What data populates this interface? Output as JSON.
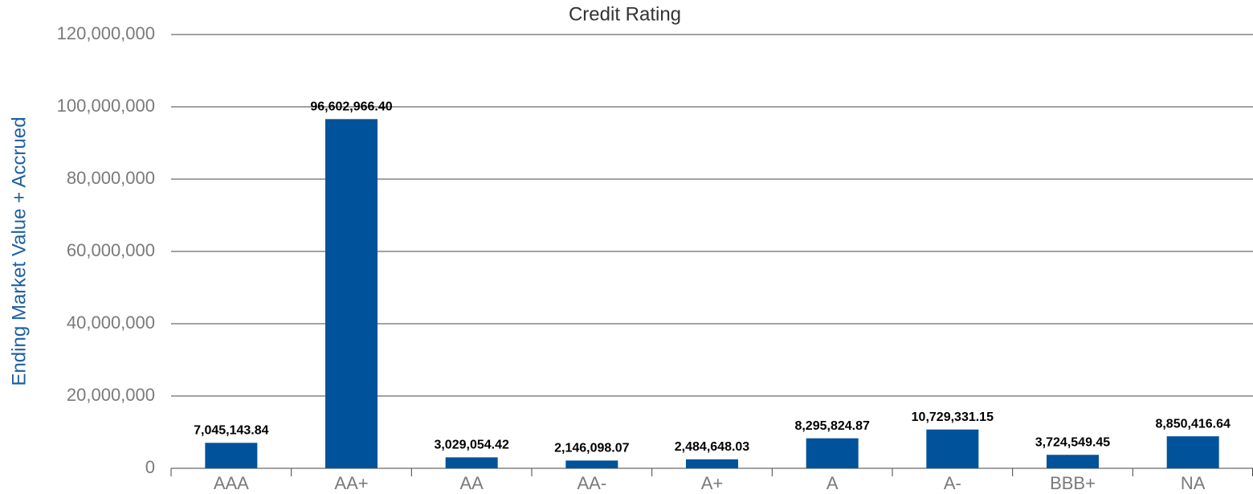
{
  "chart_data": {
    "type": "bar",
    "title": "Credit Rating",
    "y_label": "Ending Market Value + Accrued",
    "categories": [
      "AAA",
      "AA+",
      "AA",
      "AA-",
      "A+",
      "A",
      "A-",
      "BBB+",
      "NA"
    ],
    "values": [
      7045143.84,
      96602966.4,
      3029054.42,
      2146098.07,
      2484648.03,
      8295824.87,
      10729331.15,
      3724549.45,
      8850416.64
    ],
    "value_labels": [
      "7,045,143.84",
      "96,602,966.40",
      "3,029,054.42",
      "2,146,098.07",
      "2,484,648.03",
      "8,295,824.87",
      "10,729,331.15",
      "3,724,549.45",
      "8,850,416.64"
    ],
    "color": "#00529b",
    "ylim": [
      0,
      120000000
    ],
    "yticks": [
      0,
      {
        "value": 20000000,
        "label": "20,000,000"
      },
      {
        "value": 40000000,
        "label": "40,000,000"
      },
      {
        "value": 60000000,
        "label": "60,000,000"
      },
      {
        "value": 80000000,
        "label": "80,000,000"
      },
      {
        "value": 100000000,
        "label": "100,000,000"
      },
      {
        "value": 120000000,
        "label": "120,000,000"
      }
    ],
    "grid": true
  }
}
